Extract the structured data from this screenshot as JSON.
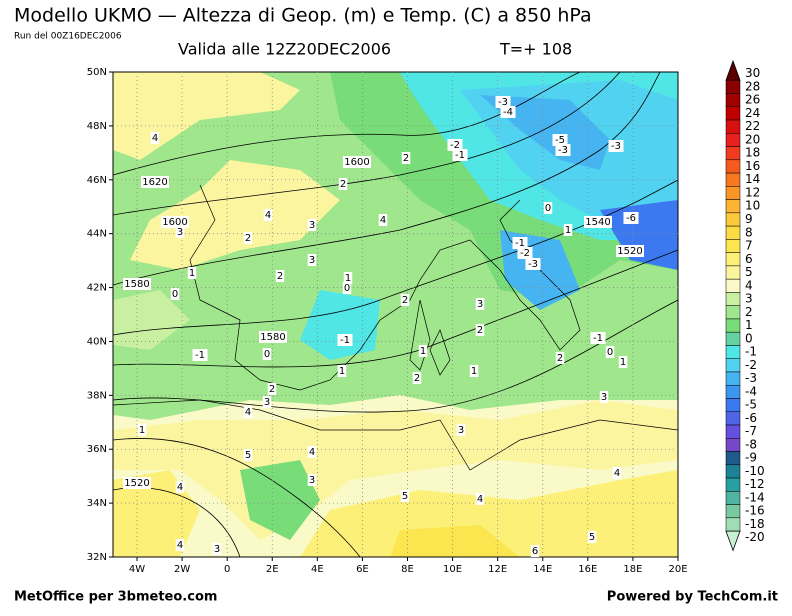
{
  "header": {
    "title": "Modello UKMO — Altezza di Geop. (m) e Temp. (C) a 850 hPa",
    "run": "Run del 00Z16DEC2006",
    "valid": "Valida alle 12Z20DEC2006",
    "step": "T=+ 108"
  },
  "map": {
    "lat_labels": [
      "50N",
      "48N",
      "46N",
      "44N",
      "42N",
      "40N",
      "38N",
      "36N",
      "34N",
      "32N"
    ],
    "lon_labels": [
      "4W",
      "2W",
      "0",
      "2E",
      "4E",
      "6E",
      "8E",
      "10E",
      "12E",
      "14E",
      "16E",
      "18E",
      "20E"
    ],
    "contour_labels": [
      4,
      1620,
      1600,
      3,
      1,
      1580,
      0,
      4,
      2,
      3,
      2,
      3,
      2,
      1600,
      2,
      4,
      1,
      0,
      2,
      3,
      2,
      1580,
      0,
      -1,
      -1,
      1,
      1,
      2,
      1,
      -3,
      -4,
      -2,
      -1,
      -5,
      -3,
      -3,
      0,
      1540,
      -6,
      -1,
      -2,
      -3,
      1520,
      1,
      -1,
      0,
      1,
      2,
      2,
      3,
      4,
      3,
      1,
      3,
      4,
      5,
      1520,
      4,
      3,
      4,
      5,
      4,
      5,
      6,
      3,
      4
    ]
  },
  "colorbar": {
    "labels": [
      30,
      28,
      26,
      24,
      22,
      20,
      18,
      16,
      14,
      12,
      10,
      9,
      8,
      7,
      6,
      5,
      4,
      3,
      2,
      1,
      0,
      -1,
      -2,
      -3,
      -4,
      -5,
      -6,
      -7,
      -8,
      -9,
      -10,
      -12,
      -14,
      -16,
      -18,
      -20
    ],
    "colors": [
      "#5a0000",
      "#8b0000",
      "#a00000",
      "#c00000",
      "#d81010",
      "#e82020",
      "#f03c1e",
      "#f55a1e",
      "#f87820",
      "#fa9628",
      "#fcb432",
      "#fcc83c",
      "#fcdc46",
      "#fce650",
      "#fcf078",
      "#fcf5a0",
      "#fafac8",
      "#c8f0a0",
      "#a0e68c",
      "#78dc78",
      "#64d2a0",
      "#50e6e6",
      "#50d2f0",
      "#46b4f0",
      "#3c96f0",
      "#3c78f0",
      "#5064e6",
      "#6450dc",
      "#7846c8",
      "#1e5a8c",
      "#1e8296",
      "#28a0a0",
      "#50b4a0",
      "#78c8a0",
      "#a0dcb4",
      "#c8f0d2"
    ]
  },
  "footer": {
    "left": "MetOffice per 3bmeteo.com",
    "right": "Powered by TechCom.it"
  }
}
